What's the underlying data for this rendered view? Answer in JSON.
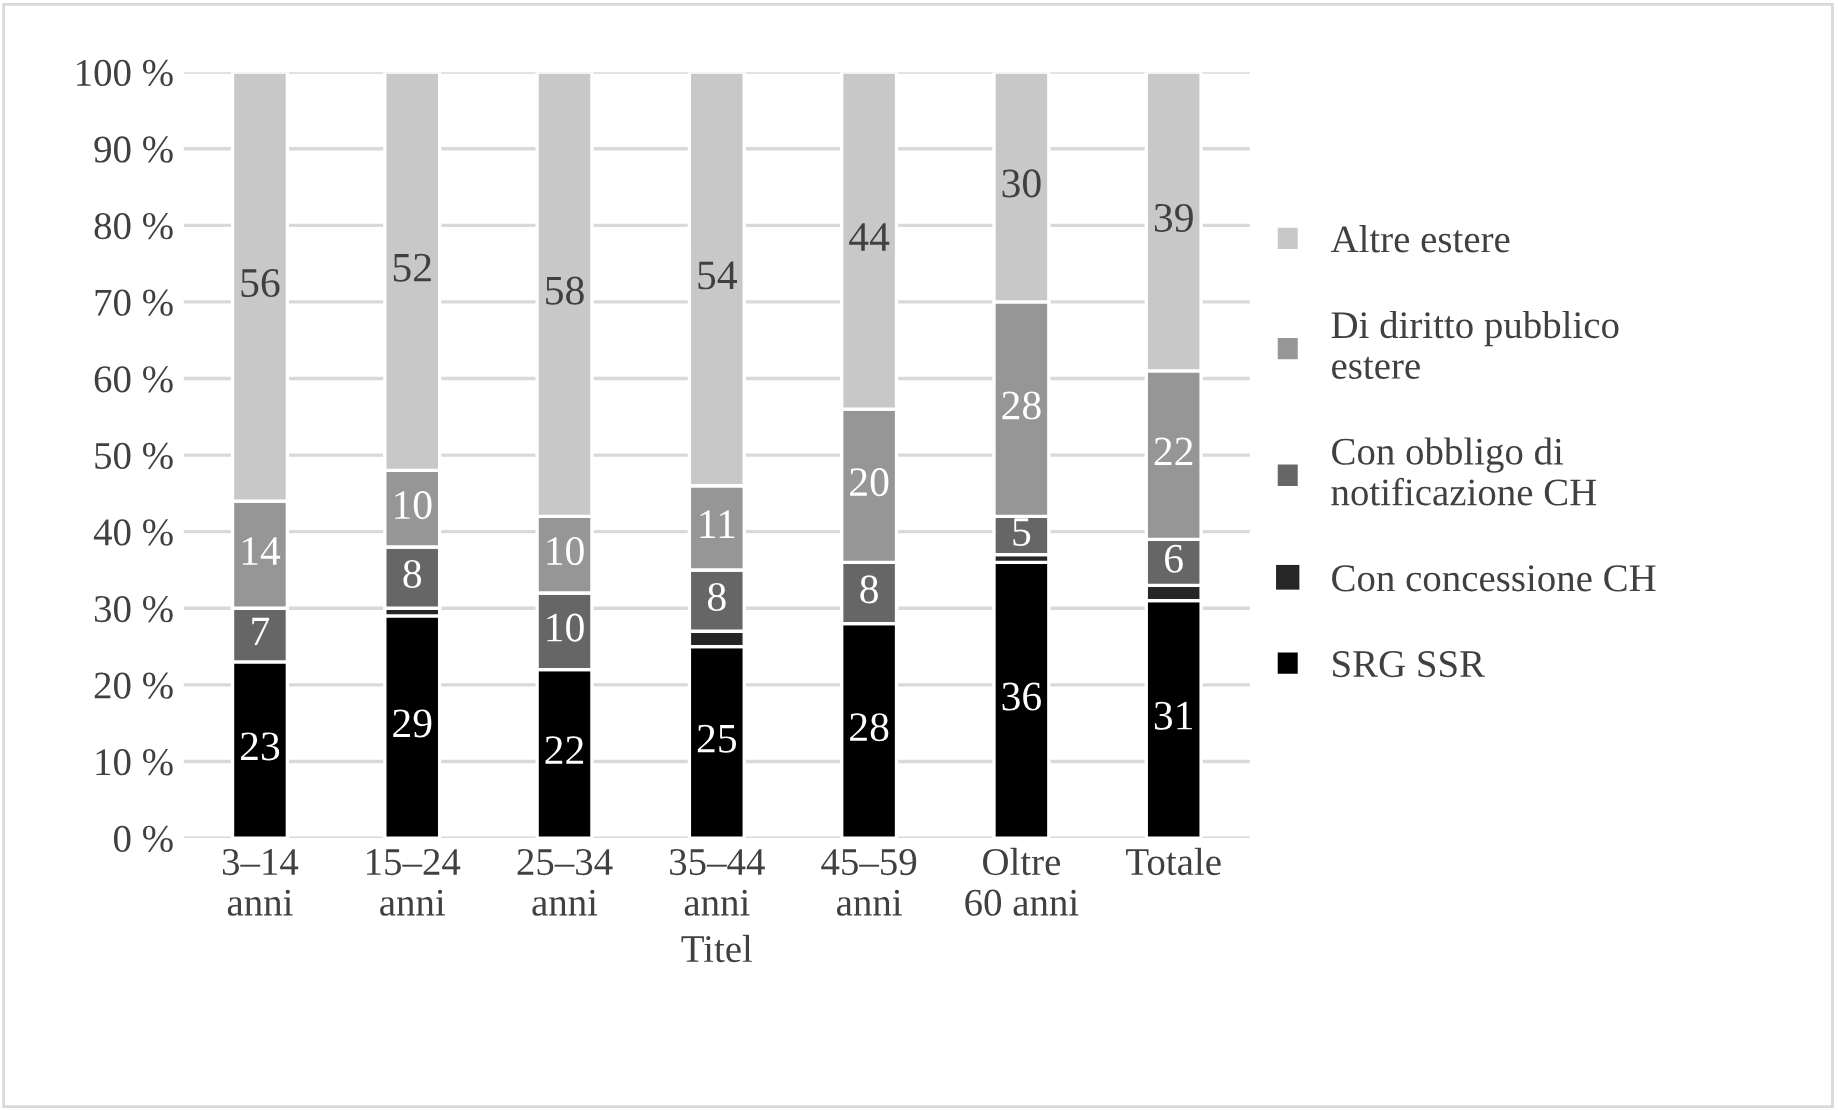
{
  "chart_data": {
    "type": "bar",
    "stacked": true,
    "xlabel": "Titel",
    "categories": [
      "3–14\nanni",
      "15–24\nanni",
      "25–34\nanni",
      "35–44\nanni",
      "45–59\nanni",
      "Oltre\n60 anni",
      "Totale"
    ],
    "series": [
      {
        "name": "SRG SSR",
        "color": "#000000",
        "values": [
          23,
          29,
          22,
          25,
          28,
          36,
          31
        ],
        "value_labels": [
          "23",
          "29",
          "22",
          "25",
          "28",
          "36",
          "31"
        ]
      },
      {
        "name": "Con concessione CH",
        "color": "#262626",
        "values": [
          0,
          1,
          0,
          2,
          0,
          1,
          2
        ]
      },
      {
        "name": "Con obbligo di\nnotificazione CH",
        "color": "#666666",
        "values": [
          7,
          8,
          10,
          8,
          8,
          5,
          6
        ],
        "value_labels": [
          "7",
          "8",
          "10",
          "8",
          "8",
          "5",
          "6"
        ]
      },
      {
        "name": "Di diritto pubblico\nestere",
        "color": "#969696",
        "values": [
          14,
          10,
          10,
          11,
          20,
          28,
          22
        ],
        "value_labels": [
          "14",
          "10",
          "10",
          "11",
          "20",
          "28",
          "22"
        ]
      },
      {
        "name": "Altre estere",
        "color": "#c8c8c8",
        "values": [
          56,
          52,
          58,
          54,
          44,
          30,
          39
        ],
        "value_labels": [
          "56",
          "52",
          "58",
          "54",
          "44",
          "30",
          "39"
        ]
      }
    ],
    "ylim": [
      0,
      100
    ],
    "yticks": [
      {
        "value": 0,
        "label": "0 %"
      },
      {
        "value": 10,
        "label": "10 %"
      },
      {
        "value": 20,
        "label": "20 %"
      },
      {
        "value": 30,
        "label": "30 %"
      },
      {
        "value": 40,
        "label": "40 %"
      },
      {
        "value": 50,
        "label": "50 %"
      },
      {
        "value": 60,
        "label": "60 %"
      },
      {
        "value": 70,
        "label": "70 %"
      },
      {
        "value": 80,
        "label": "80 %"
      },
      {
        "value": 90,
        "label": "90 %"
      },
      {
        "value": 100,
        "label": "100 %"
      }
    ],
    "grid": "y",
    "legend": "right"
  }
}
